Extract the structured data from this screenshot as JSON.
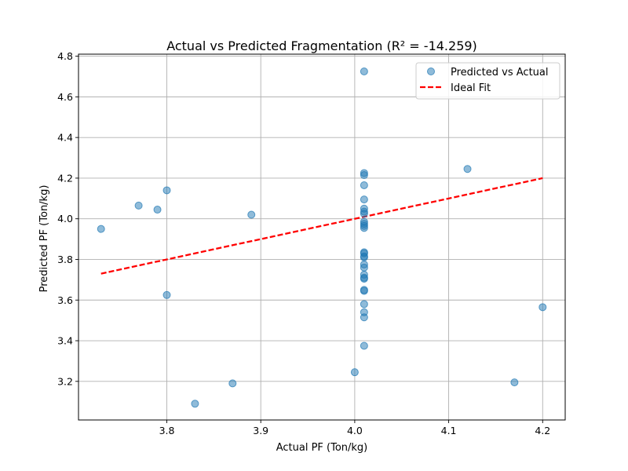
{
  "chart_data": {
    "type": "scatter",
    "title": "Actual vs Predicted Fragmentation (R² = -14.259)",
    "xlabel": "Actual PF (Ton/kg)",
    "ylabel": "Predicted PF (Ton/kg)",
    "xlim": [
      3.706,
      4.224
    ],
    "ylim": [
      3.01,
      4.81
    ],
    "x_ticks": [
      3.8,
      3.9,
      4.0,
      4.1,
      4.2
    ],
    "x_tick_labels": [
      "3.8",
      "3.9",
      "4.0",
      "4.1",
      "4.2"
    ],
    "y_ticks": [
      3.2,
      3.4,
      3.6,
      3.8,
      4.0,
      4.2,
      4.4,
      4.6,
      4.8
    ],
    "y_tick_labels": [
      "3.2",
      "3.4",
      "3.6",
      "3.8",
      "4.0",
      "4.2",
      "4.4",
      "4.6",
      "4.8"
    ],
    "grid": true,
    "legend_position": "top-right",
    "series": [
      {
        "name": "Predicted vs Actual",
        "kind": "scatter",
        "color": "#1f77b4",
        "points": [
          [
            3.73,
            3.95
          ],
          [
            3.77,
            4.065
          ],
          [
            3.79,
            4.045
          ],
          [
            3.8,
            4.14
          ],
          [
            3.8,
            3.625
          ],
          [
            3.83,
            3.09
          ],
          [
            3.87,
            3.19
          ],
          [
            3.89,
            4.02
          ],
          [
            4.0,
            3.245
          ],
          [
            4.01,
            4.725
          ],
          [
            4.01,
            4.225
          ],
          [
            4.01,
            4.215
          ],
          [
            4.01,
            4.165
          ],
          [
            4.01,
            4.095
          ],
          [
            4.01,
            4.05
          ],
          [
            4.01,
            4.035
          ],
          [
            4.01,
            4.025
          ],
          [
            4.01,
            3.985
          ],
          [
            4.01,
            3.975
          ],
          [
            4.01,
            3.965
          ],
          [
            4.01,
            3.955
          ],
          [
            4.01,
            3.835
          ],
          [
            4.01,
            3.83
          ],
          [
            4.01,
            3.815
          ],
          [
            4.01,
            3.81
          ],
          [
            4.01,
            3.775
          ],
          [
            4.01,
            3.76
          ],
          [
            4.01,
            3.725
          ],
          [
            4.01,
            3.71
          ],
          [
            4.01,
            3.705
          ],
          [
            4.01,
            3.65
          ],
          [
            4.01,
            3.645
          ],
          [
            4.01,
            3.58
          ],
          [
            4.01,
            3.54
          ],
          [
            4.01,
            3.515
          ],
          [
            4.01,
            3.375
          ],
          [
            4.12,
            4.245
          ],
          [
            4.17,
            3.195
          ],
          [
            4.2,
            3.565
          ]
        ]
      },
      {
        "name": "Ideal Fit",
        "kind": "line",
        "style": "dashed",
        "color": "#ff0000",
        "points": [
          [
            3.73,
            3.73
          ],
          [
            4.2,
            4.2
          ]
        ]
      }
    ]
  }
}
